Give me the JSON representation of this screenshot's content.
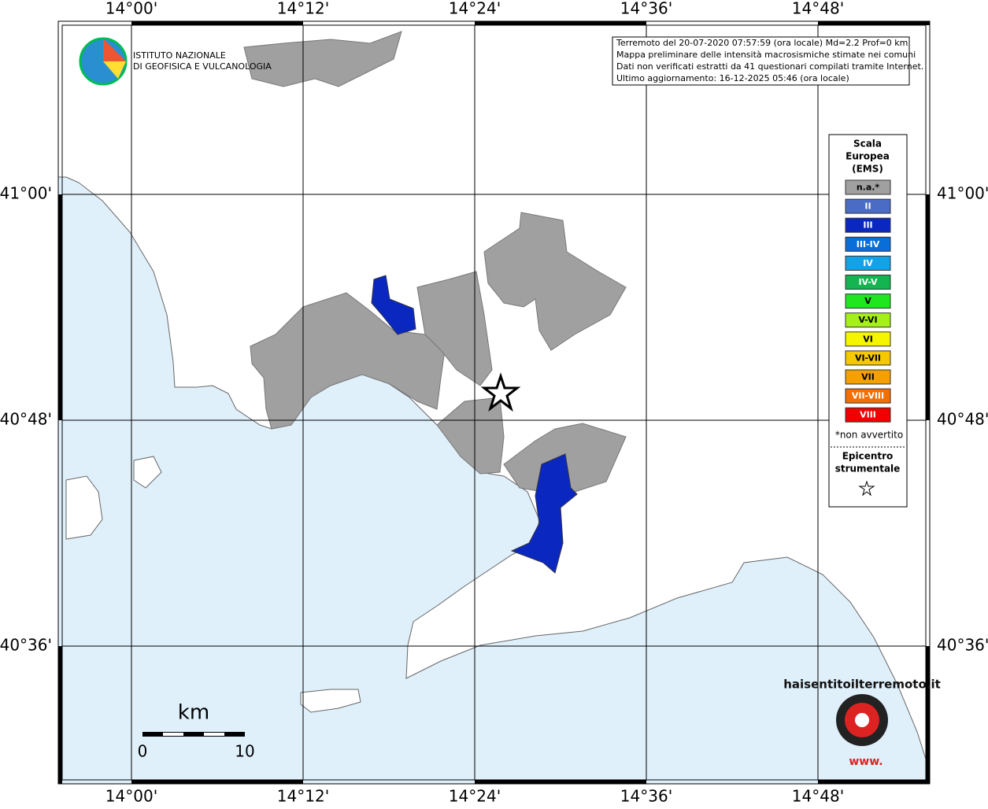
{
  "map": {
    "lon_labels": [
      "14°00'",
      "14°12'",
      "14°24'",
      "14°36'",
      "14°48'"
    ],
    "lat_labels": [
      "41°00'",
      "40°48'",
      "40°36'"
    ],
    "info": [
      "Terremoto del 20-07-2020 07:57:59 (ora locale) Md=2.2 Prof=0 km",
      "Mappa preliminare delle intensità macrosismiche stimate nei comuni",
      "Dati non verificati estratti da 41 questionari compilati tramite Internet.",
      "Ultimo aggiornamento: 16-12-2025 05:46 (ora locale)"
    ],
    "institute": [
      "ISTITUTO NAZIONALE",
      "DI GEOFISICA E VULCANOLOGIA"
    ],
    "legend": {
      "title": [
        "Scala",
        "Europea",
        "(EMS)"
      ],
      "items": [
        {
          "label": "n.a.*",
          "color": "#a0a0a0"
        },
        {
          "label": "II",
          "color": "#4a6cc4"
        },
        {
          "label": "III",
          "color": "#0a28c0"
        },
        {
          "label": "III-IV",
          "color": "#0a6ed8"
        },
        {
          "label": "IV",
          "color": "#14a2e6"
        },
        {
          "label": "IV-V",
          "color": "#14b450"
        },
        {
          "label": "V",
          "color": "#20e620"
        },
        {
          "label": "V-VI",
          "color": "#a6f01a"
        },
        {
          "label": "VI",
          "color": "#f5f500"
        },
        {
          "label": "VI-VII",
          "color": "#f5c800"
        },
        {
          "label": "VII",
          "color": "#f5a000"
        },
        {
          "label": "VII-VIII",
          "color": "#f56e00"
        },
        {
          "label": "VIII",
          "color": "#f00000"
        }
      ],
      "note": "*non avvertito",
      "epicenter": [
        "Epicentro",
        "strumentale"
      ]
    },
    "scale": {
      "unit": "km",
      "labels": [
        "0",
        "10"
      ]
    },
    "watermark": [
      "www.",
      "haisentitoilterremoto.it"
    ]
  }
}
